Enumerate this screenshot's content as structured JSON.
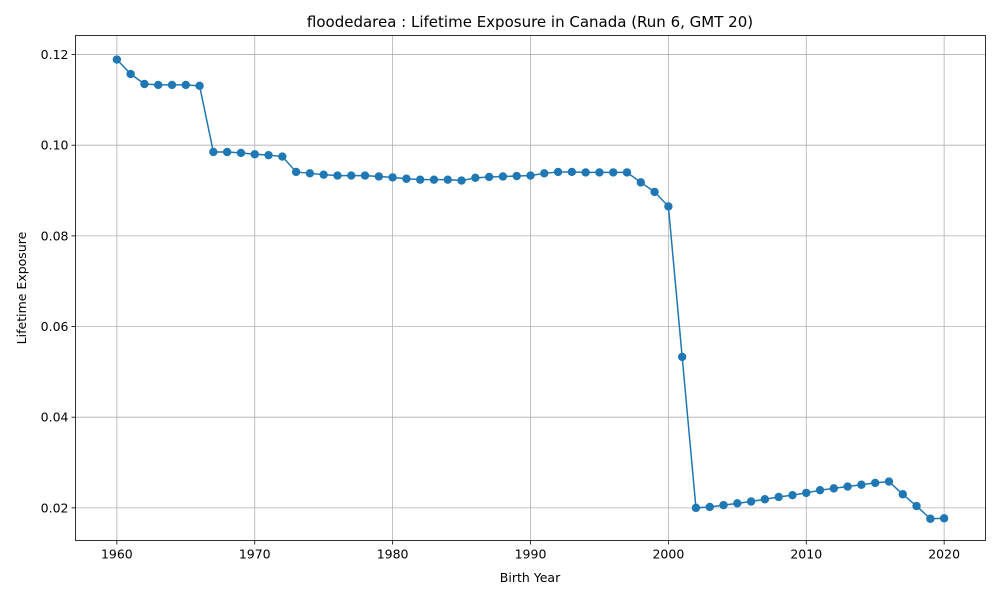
{
  "chart_data": {
    "type": "line",
    "title": "floodedarea : Lifetime Exposure in Canada (Run 6, GMT 20)",
    "xlabel": "Birth Year",
    "ylabel": "Lifetime Exposure",
    "xlim": [
      1957,
      2023
    ],
    "ylim": [
      0.0128,
      0.1242
    ],
    "xticks": [
      1960,
      1970,
      1980,
      1990,
      2000,
      2010,
      2020
    ],
    "yticks": [
      0.02,
      0.04,
      0.06,
      0.08,
      0.1,
      0.12
    ],
    "ytick_labels": [
      "0.02",
      "0.04",
      "0.06",
      "0.08",
      "0.10",
      "0.12"
    ],
    "grid": true,
    "marker": "circle",
    "color": "#1f77b4",
    "series": [
      {
        "x": [
          1960,
          1961,
          1962,
          1963,
          1964,
          1965,
          1966,
          1967,
          1968,
          1969,
          1970,
          1971,
          1972,
          1973,
          1974,
          1975,
          1976,
          1977,
          1978,
          1979,
          1980,
          1981,
          1982,
          1983,
          1984,
          1985,
          1986,
          1987,
          1988,
          1989,
          1990,
          1991,
          1992,
          1993,
          1994,
          1995,
          1996,
          1997,
          1998,
          1999,
          2000,
          2001,
          2002,
          2003,
          2004,
          2005,
          2006,
          2007,
          2008,
          2009,
          2010,
          2011,
          2012,
          2013,
          2014,
          2015,
          2016,
          2017,
          2018,
          2019,
          2020
        ],
        "y": [
          0.1189,
          0.1157,
          0.1135,
          0.1133,
          0.1133,
          0.1133,
          0.1131,
          0.0985,
          0.0985,
          0.0983,
          0.098,
          0.0978,
          0.0975,
          0.0941,
          0.0938,
          0.0935,
          0.0933,
          0.0933,
          0.0933,
          0.0931,
          0.0929,
          0.0926,
          0.0924,
          0.0924,
          0.0924,
          0.0922,
          0.0928,
          0.093,
          0.0931,
          0.0932,
          0.0933,
          0.0938,
          0.0941,
          0.0941,
          0.094,
          0.094,
          0.094,
          0.094,
          0.0918,
          0.0897,
          0.0865,
          0.0533,
          0.02,
          0.0202,
          0.0206,
          0.021,
          0.0214,
          0.0219,
          0.0224,
          0.0228,
          0.0233,
          0.0239,
          0.0243,
          0.0247,
          0.0251,
          0.0255,
          0.0258,
          0.023,
          0.0204,
          0.0176,
          0.0177
        ]
      }
    ]
  }
}
